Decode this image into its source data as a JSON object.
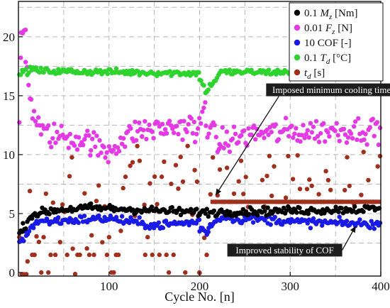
{
  "chart_data": {
    "type": "scatter",
    "title": "",
    "xlabel": "Cycle No. [n]",
    "ylabel": "",
    "xlim": [
      0,
      400
    ],
    "ylim": [
      -0.3,
      23
    ],
    "xticks": [
      100,
      200,
      300,
      400
    ],
    "yticks": [
      0,
      5,
      10,
      15,
      20
    ],
    "grid": true,
    "legend_position": "top-right",
    "series": [
      {
        "key": "mz",
        "legend": [
          "0.1 ",
          "M",
          "z",
          " [Nm]"
        ],
        "color": "#000000",
        "segments": [
          {
            "x": [
              1,
              5
            ],
            "y": [
              3.2,
              3.8
            ]
          },
          {
            "x": [
              5,
              15
            ],
            "y": [
              3.8,
              4.9
            ]
          },
          {
            "x": [
              15,
              40
            ],
            "y": [
              4.9,
              5.3
            ]
          },
          {
            "x": [
              40,
              80
            ],
            "y": [
              5.3,
              5.5
            ]
          },
          {
            "x": [
              80,
              200
            ],
            "y": [
              5.5,
              5.1
            ]
          },
          {
            "x": [
              200,
              400
            ],
            "y": [
              5.1,
              5.4
            ]
          }
        ],
        "spread": 0.28
      },
      {
        "key": "fz",
        "legend": [
          "0.01 ",
          "F",
          "z",
          " [N]"
        ],
        "color": "#e33ae6",
        "segments": [
          {
            "x": [
              1,
              3
            ],
            "y": [
              13.0,
              19.5
            ]
          },
          {
            "x": [
              3,
              8
            ],
            "y": [
              20.0,
              20.8
            ]
          },
          {
            "x": [
              8,
              14
            ],
            "y": [
              18.0,
              15.0
            ]
          },
          {
            "x": [
              14,
              25
            ],
            "y": [
              14.0,
              12.2
            ]
          },
          {
            "x": [
              25,
              80
            ],
            "y": [
              11.8,
              11.2
            ]
          },
          {
            "x": [
              80,
              100
            ],
            "y": [
              11.0,
              10.0
            ]
          },
          {
            "x": [
              100,
              130
            ],
            "y": [
              10.5,
              12.0
            ]
          },
          {
            "x": [
              130,
              195
            ],
            "y": [
              12.0,
              12.5
            ]
          },
          {
            "x": [
              195,
              207
            ],
            "y": [
              11.0,
              14.5
            ]
          },
          {
            "x": [
              207,
              222
            ],
            "y": [
              13.0,
              10.5
            ]
          },
          {
            "x": [
              222,
              260
            ],
            "y": [
              11.0,
              11.8
            ]
          },
          {
            "x": [
              260,
              400
            ],
            "y": [
              11.8,
              12.2
            ]
          }
        ],
        "spread": 0.9
      },
      {
        "key": "cof",
        "legend": [
          "10 COF [-]"
        ],
        "color": "#1a1ae6",
        "segments": [
          {
            "x": [
              1,
              7
            ],
            "y": [
              2.6,
              3.0
            ]
          },
          {
            "x": [
              7,
              20
            ],
            "y": [
              3.2,
              4.3
            ]
          },
          {
            "x": [
              20,
              100
            ],
            "y": [
              4.3,
              4.6
            ]
          },
          {
            "x": [
              100,
              150
            ],
            "y": [
              4.6,
              4.0
            ]
          },
          {
            "x": [
              150,
              200
            ],
            "y": [
              4.0,
              4.3
            ]
          },
          {
            "x": [
              200,
              210
            ],
            "y": [
              3.8,
              3.3
            ]
          },
          {
            "x": [
              210,
              232
            ],
            "y": [
              4.0,
              5.0
            ]
          },
          {
            "x": [
              232,
              300
            ],
            "y": [
              4.6,
              4.4
            ]
          },
          {
            "x": [
              300,
              400
            ],
            "y": [
              4.3,
              4.1
            ]
          }
        ],
        "spread": 0.3
      },
      {
        "key": "td_temp",
        "legend": [
          "0.1 ",
          "T",
          "d",
          " [°C]"
        ],
        "color": "#2ed32e",
        "segments": [
          {
            "x": [
              1,
              5
            ],
            "y": [
              16.5,
              17.5
            ]
          },
          {
            "x": [
              5,
              20
            ],
            "y": [
              17.0,
              17.3
            ]
          },
          {
            "x": [
              20,
              200
            ],
            "y": [
              17.1,
              16.9
            ]
          },
          {
            "x": [
              200,
              208
            ],
            "y": [
              16.5,
              15.2
            ]
          },
          {
            "x": [
              208,
              222
            ],
            "y": [
              15.5,
              16.8
            ]
          },
          {
            "x": [
              222,
              400
            ],
            "y": [
              17.0,
              17.0
            ]
          }
        ],
        "spread": 0.22
      },
      {
        "key": "td_time",
        "legend": [
          "t",
          "d",
          " [s]"
        ],
        "color": "#a0301e",
        "segments": [
          {
            "x": [
              1,
              10
            ],
            "y": [
              0.0,
              1.5
            ]
          },
          {
            "x": [
              10,
              20
            ],
            "y": [
              4.0,
              8.0
            ]
          },
          {
            "x": [
              20,
              60
            ],
            "y": [
              3.0,
              7.0
            ]
          },
          {
            "x": [
              60,
              90
            ],
            "y": [
              2.0,
              8.0
            ]
          },
          {
            "x": [
              90,
              100
            ],
            "y": [
              3.0,
              3.0
            ]
          },
          {
            "x": [
              100,
              140
            ],
            "y": [
              5.0,
              9.0
            ]
          },
          {
            "x": [
              140,
              200
            ],
            "y": [
              6.0,
              8.0
            ]
          },
          {
            "x": [
              200,
              210
            ],
            "y": [
              0.0,
              3.0
            ]
          },
          {
            "x": [
              212,
              400
            ],
            "y": [
              6.0,
              6.0
            ]
          }
        ],
        "spread": 3.2
      }
    ],
    "annotations": [
      {
        "text": "Imposed minimum cooling time delay",
        "x": 358,
        "y": 15.5,
        "arrow_to": [
          218,
          6.6
        ]
      },
      {
        "text": "Improved stability of COF",
        "x": 294,
        "y": 1.9,
        "arrow_to": [
          372,
          3.9
        ]
      }
    ]
  }
}
